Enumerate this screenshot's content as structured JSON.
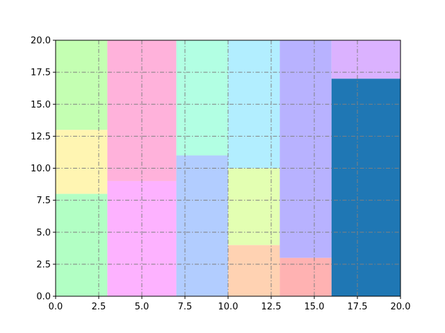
{
  "chart_data": {
    "type": "bar",
    "subtype": "treemap-like filled rectangles",
    "xlim": [
      0,
      20
    ],
    "ylim": [
      0,
      20
    ],
    "x_ticks": [
      "0.0",
      "2.5",
      "5.0",
      "7.5",
      "10.0",
      "12.5",
      "15.0",
      "17.5",
      "20.0"
    ],
    "y_ticks": [
      "0.0",
      "2.5",
      "5.0",
      "7.5",
      "10.0",
      "12.5",
      "15.0",
      "17.5",
      "20.0"
    ],
    "grid": true,
    "grid_style": "dash-dot",
    "grid_color": "#808080",
    "rectangles": [
      {
        "x0": 0,
        "x1": 3,
        "y0": 0,
        "y1": 8,
        "color": "#b2ffc4"
      },
      {
        "x0": 0,
        "x1": 3,
        "y0": 8,
        "y1": 13,
        "color": "#fff5b2"
      },
      {
        "x0": 0,
        "x1": 3,
        "y0": 13,
        "y1": 20,
        "color": "#c4ffb2"
      },
      {
        "x0": 3,
        "x1": 7,
        "y0": 0,
        "y1": 9,
        "color": "#fdb2ff"
      },
      {
        "x0": 3,
        "x1": 7,
        "y0": 9,
        "y1": 20,
        "color": "#ffb2db"
      },
      {
        "x0": 7,
        "x1": 10,
        "y0": 0,
        "y1": 11,
        "color": "#b2cdff"
      },
      {
        "x0": 7,
        "x1": 10,
        "y0": 11,
        "y1": 20,
        "color": "#b2ffe3"
      },
      {
        "x0": 10,
        "x1": 13,
        "y0": 0,
        "y1": 4,
        "color": "#ffd2b2"
      },
      {
        "x0": 10,
        "x1": 13,
        "y0": 4,
        "y1": 10,
        "color": "#e3ffb2"
      },
      {
        "x0": 10,
        "x1": 13,
        "y0": 10,
        "y1": 20,
        "color": "#b2eeff"
      },
      {
        "x0": 13,
        "x1": 16,
        "y0": 0,
        "y1": 3,
        "color": "#ffb2b2"
      },
      {
        "x0": 13,
        "x1": 16,
        "y0": 3,
        "y1": 20,
        "color": "#b8b2ff"
      },
      {
        "x0": 16,
        "x1": 20,
        "y0": 0,
        "y1": 17,
        "color": "#1f77b4"
      },
      {
        "x0": 16,
        "x1": 20,
        "y0": 17,
        "y1": 20,
        "color": "#dbb2ff"
      }
    ]
  }
}
